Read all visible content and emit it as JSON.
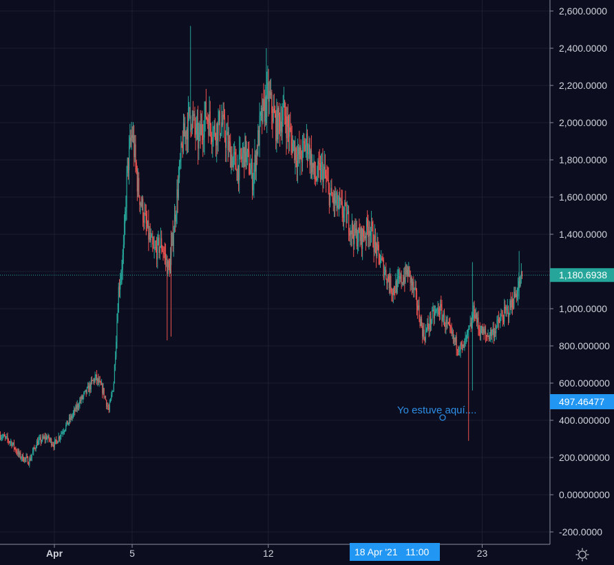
{
  "colors": {
    "background": "#0c0d1e",
    "grid": "#1d1f33",
    "axis_text": "#d1d4dc",
    "axis_line": "#8a8e9e",
    "up": "#26a69a",
    "down": "#ef5350",
    "last_price": "#26a69a",
    "marker": "#2196f3",
    "annotation": "#2d8fe6"
  },
  "crosshair": {
    "price_label": "497.46477",
    "time_label": "18 Apr '21   11:00"
  },
  "annotation": {
    "text": "Yo estuve aquí...."
  },
  "settings": {
    "icon": "gear-icon"
  },
  "chart_data": {
    "type": "candlestick",
    "title": "",
    "xlabel": "",
    "ylabel": "",
    "y_range": [
      -220,
      2650
    ],
    "y_ticks": [
      -200,
      0,
      200,
      400,
      600,
      800,
      1000,
      1200,
      1400,
      1600,
      1800,
      2000,
      2200,
      2400,
      2600
    ],
    "y_tick_labels": [
      "-200.0000",
      "0.00000000",
      "200.000000",
      "400.000000",
      "600.000000",
      "800.000000",
      "1,000.0000",
      "1,200.0000",
      "1,400.0000",
      "1,600.0000",
      "1,800.0000",
      "2,000.0000",
      "2,200.0000",
      "2,400.0000",
      "2,600.0000"
    ],
    "x_unit": "days since Apr 1 2021",
    "x_range": [
      -2.78,
      24.08
    ],
    "x_ticks": [
      0,
      4,
      11,
      22
    ],
    "x_tick_labels": [
      "Apr",
      "5",
      "12",
      "23"
    ],
    "last_price": 1180.6938,
    "last_price_label": "1,180.6938",
    "grid": true,
    "close_path": [
      [
        -2.78,
        320
      ],
      [
        -2.2,
        280
      ],
      [
        -1.8,
        210
      ],
      [
        -1.3,
        180
      ],
      [
        -0.9,
        280
      ],
      [
        -0.4,
        310
      ],
      [
        0.0,
        270
      ],
      [
        0.4,
        340
      ],
      [
        0.9,
        420
      ],
      [
        1.3,
        500
      ],
      [
        1.7,
        560
      ],
      [
        2.1,
        630
      ],
      [
        2.5,
        560
      ],
      [
        2.8,
        450
      ],
      [
        3.05,
        600
      ],
      [
        3.3,
        1100
      ],
      [
        3.55,
        1300
      ],
      [
        3.75,
        1750
      ],
      [
        4.0,
        1950
      ],
      [
        4.3,
        1650
      ],
      [
        4.7,
        1450
      ],
      [
        5.1,
        1300
      ],
      [
        5.5,
        1350
      ],
      [
        5.9,
        1200
      ],
      [
        6.2,
        1500
      ],
      [
        6.6,
        1900
      ],
      [
        7.0,
        2050
      ],
      [
        7.4,
        1900
      ],
      [
        7.8,
        2050
      ],
      [
        8.2,
        1950
      ],
      [
        8.6,
        2000
      ],
      [
        9.0,
        1850
      ],
      [
        9.4,
        1750
      ],
      [
        9.8,
        1850
      ],
      [
        10.2,
        1700
      ],
      [
        10.6,
        2000
      ],
      [
        11.0,
        2150
      ],
      [
        11.4,
        1980
      ],
      [
        11.8,
        2050
      ],
      [
        12.2,
        1900
      ],
      [
        12.6,
        1800
      ],
      [
        13.0,
        1900
      ],
      [
        13.4,
        1700
      ],
      [
        13.8,
        1750
      ],
      [
        14.2,
        1600
      ],
      [
        14.6,
        1550
      ],
      [
        15.0,
        1500
      ],
      [
        15.4,
        1400
      ],
      [
        15.8,
        1380
      ],
      [
        16.2,
        1450
      ],
      [
        16.6,
        1300
      ],
      [
        17.0,
        1200
      ],
      [
        17.4,
        1100
      ],
      [
        17.8,
        1150
      ],
      [
        18.2,
        1200
      ],
      [
        18.6,
        1050
      ],
      [
        19.0,
        850
      ],
      [
        19.4,
        950
      ],
      [
        19.8,
        1000
      ],
      [
        20.2,
        900
      ],
      [
        20.6,
        820
      ],
      [
        21.0,
        780
      ],
      [
        21.4,
        900
      ],
      [
        21.6,
        1000
      ],
      [
        21.8,
        900
      ],
      [
        22.2,
        850
      ],
      [
        22.6,
        880
      ],
      [
        23.0,
        950
      ],
      [
        23.4,
        1000
      ],
      [
        23.8,
        1100
      ],
      [
        24.08,
        1180
      ]
    ]
  }
}
